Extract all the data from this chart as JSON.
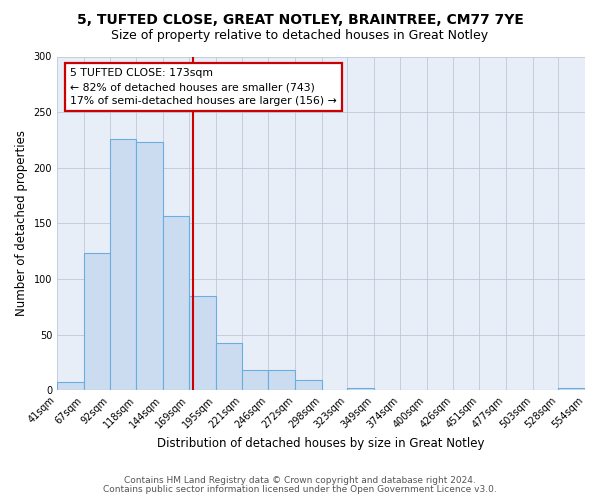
{
  "title": "5, TUFTED CLOSE, GREAT NOTLEY, BRAINTREE, CM77 7YE",
  "subtitle": "Size of property relative to detached houses in Great Notley",
  "xlabel": "Distribution of detached houses by size in Great Notley",
  "ylabel": "Number of detached properties",
  "bin_edges": [
    41,
    67,
    92,
    118,
    144,
    169,
    195,
    221,
    246,
    272,
    298,
    323,
    349,
    374,
    400,
    426,
    451,
    477,
    503,
    528,
    554
  ],
  "counts": [
    7,
    123,
    226,
    223,
    157,
    85,
    42,
    18,
    18,
    9,
    0,
    2,
    0,
    0,
    0,
    0,
    0,
    0,
    0,
    2
  ],
  "bar_color": "#ccdcf0",
  "bar_edge_color": "#6aaee0",
  "vline_x": 173,
  "vline_color": "#cc0000",
  "annotation_title": "5 TUFTED CLOSE: 173sqm",
  "annotation_line1": "← 82% of detached houses are smaller (743)",
  "annotation_line2": "17% of semi-detached houses are larger (156) →",
  "annotation_box_color": "#cc0000",
  "annotation_fill": "#ffffff",
  "ylim": [
    0,
    300
  ],
  "yticks": [
    0,
    50,
    100,
    150,
    200,
    250,
    300
  ],
  "tick_labels": [
    "41sqm",
    "67sqm",
    "92sqm",
    "118sqm",
    "144sqm",
    "169sqm",
    "195sqm",
    "221sqm",
    "246sqm",
    "272sqm",
    "298sqm",
    "323sqm",
    "349sqm",
    "374sqm",
    "400sqm",
    "426sqm",
    "451sqm",
    "477sqm",
    "503sqm",
    "528sqm",
    "554sqm"
  ],
  "footnote1": "Contains HM Land Registry data © Crown copyright and database right 2024.",
  "footnote2": "Contains public sector information licensed under the Open Government Licence v3.0.",
  "bg_color": "#ffffff",
  "plot_bg_color": "#e8eef8",
  "title_fontsize": 10,
  "subtitle_fontsize": 9,
  "axis_label_fontsize": 8.5,
  "tick_fontsize": 7,
  "footnote_fontsize": 6.5,
  "annotation_fontsize": 7.8
}
